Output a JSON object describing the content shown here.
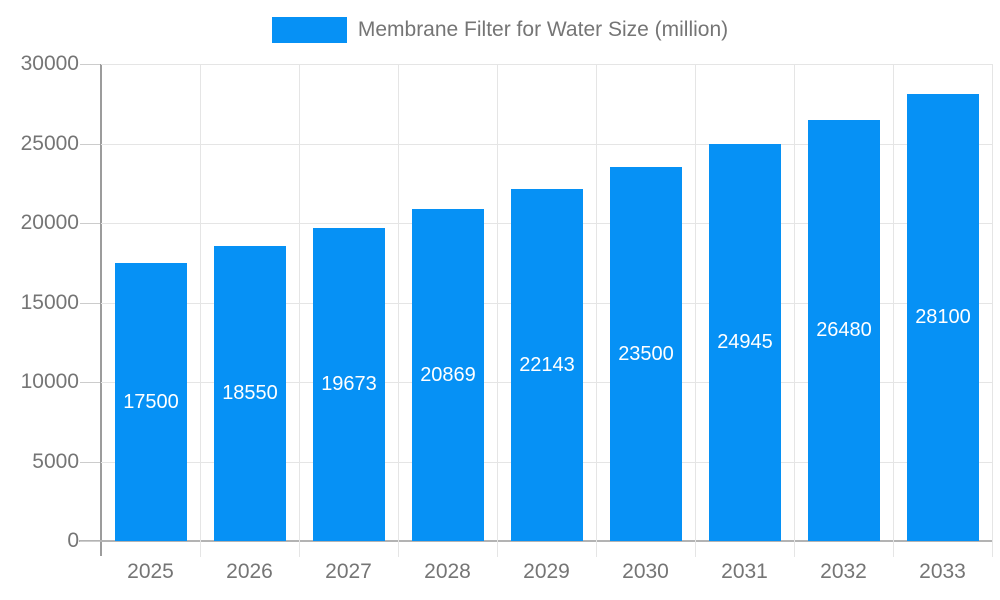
{
  "chart_data": {
    "type": "bar",
    "title": "Membrane Filter for Water Size (million)",
    "legend": {
      "position": "top",
      "entries": [
        "Membrane Filter for Water Size (million)"
      ]
    },
    "categories": [
      "2025",
      "2026",
      "2027",
      "2028",
      "2029",
      "2030",
      "2031",
      "2032",
      "2033"
    ],
    "series": [
      {
        "name": "Membrane Filter for Water Size (million)",
        "values": [
          17500,
          18550,
          19673,
          20869,
          22143,
          23500,
          24945,
          26480,
          28100
        ]
      }
    ],
    "data_labels_shown": true,
    "xlabel": "",
    "ylabel": "",
    "ylim": [
      0,
      30000
    ],
    "yticks": [
      0,
      5000,
      10000,
      15000,
      20000,
      25000,
      30000
    ],
    "grid": true,
    "colors": {
      "bar": "#0691f5",
      "bar_value_label": "#ffffff",
      "axis_text": "#757575",
      "gridline": "#e5e5e5",
      "background": "#ffffff"
    }
  }
}
